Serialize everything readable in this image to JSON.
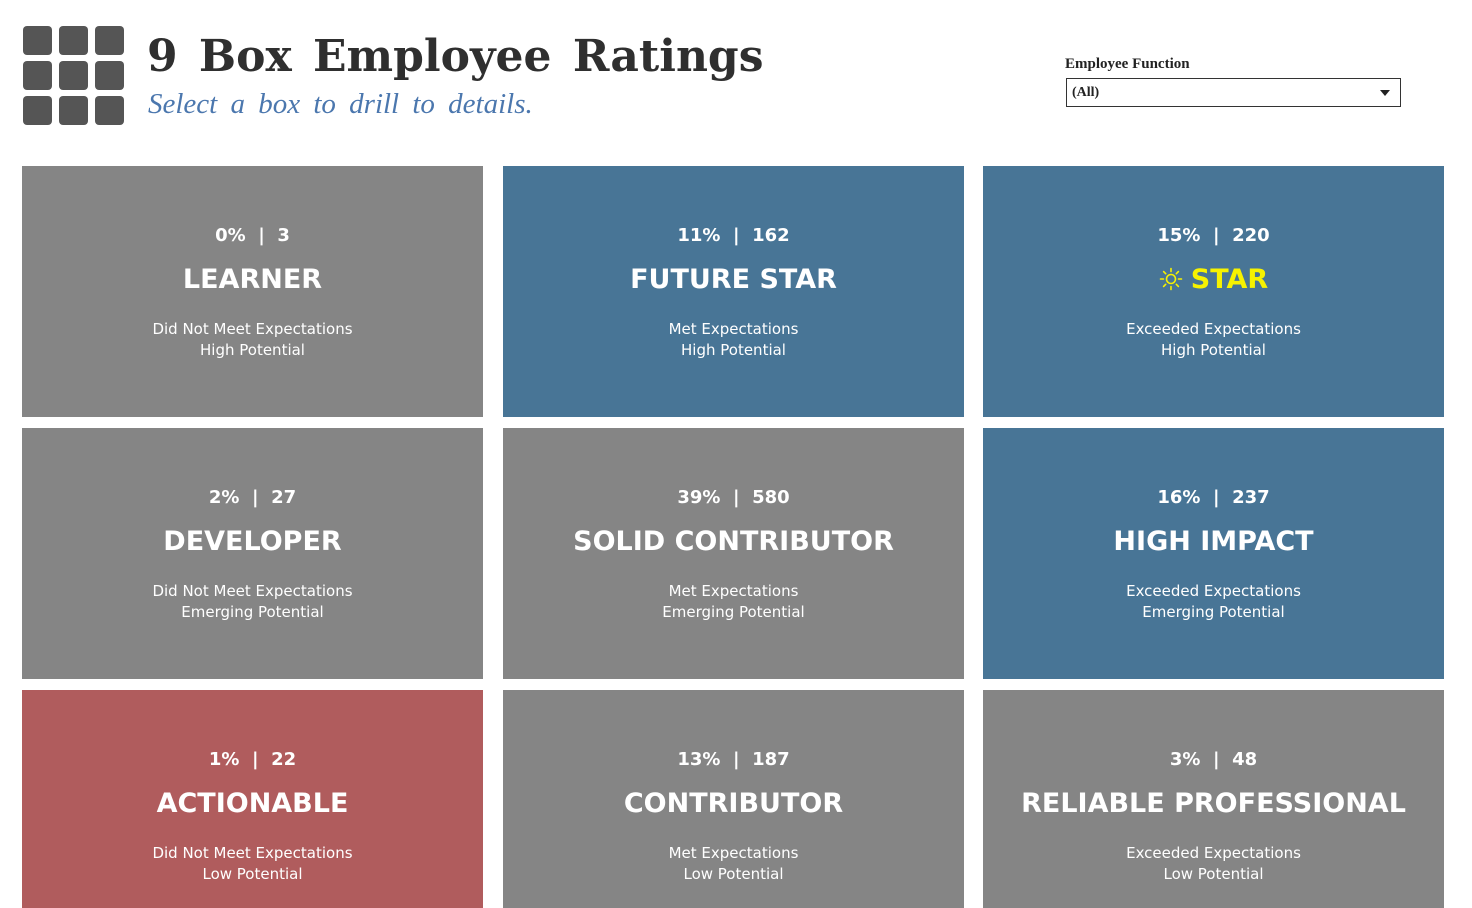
{
  "header": {
    "title": "9 Box Employee Ratings",
    "subtitle": "Select a box to drill to details.",
    "logo_icon": "nine-box-grid-icon"
  },
  "filter": {
    "label": "Employee Function",
    "value": "(All)"
  },
  "colors": {
    "gray": "#858585",
    "blue": "#487596",
    "red": "#b05c5d",
    "highlight": "#f7f200",
    "title": "#2f2f2f",
    "subtitle": "#4b77ae"
  },
  "boxes": [
    {
      "stats": "0%  |  3",
      "name": "LEARNER",
      "performance": "Did Not Meet Expectations",
      "potential": "High Potential",
      "color": "gray"
    },
    {
      "stats": "11%  |  162",
      "name": "FUTURE STAR",
      "performance": "Met Expectations",
      "potential": "High Potential",
      "color": "blue"
    },
    {
      "stats": "15%  |  220",
      "name": "STAR",
      "performance": "Exceeded Expectations",
      "potential": "High Potential",
      "color": "blue",
      "icon": "sun-icon"
    },
    {
      "stats": "2%  |  27",
      "name": "DEVELOPER",
      "performance": "Did Not Meet Expectations",
      "potential": "Emerging Potential",
      "color": "gray"
    },
    {
      "stats": "39%  |  580",
      "name": "SOLID CONTRIBUTOR",
      "performance": "Met Expectations",
      "potential": "Emerging Potential",
      "color": "gray"
    },
    {
      "stats": "16%  |  237",
      "name": "HIGH IMPACT",
      "performance": "Exceeded Expectations",
      "potential": "Emerging Potential",
      "color": "blue"
    },
    {
      "stats": "1%  |  22",
      "name": "ACTIONABLE",
      "performance": "Did Not Meet Expectations",
      "potential": "Low Potential",
      "color": "red"
    },
    {
      "stats": "13%  |  187",
      "name": "CONTRIBUTOR",
      "performance": "Met Expectations",
      "potential": "Low Potential",
      "color": "gray"
    },
    {
      "stats": "3%  |  48",
      "name": "RELIABLE PROFESSIONAL",
      "performance": "Exceeded Expectations",
      "potential": "Low Potential",
      "color": "gray"
    }
  ]
}
